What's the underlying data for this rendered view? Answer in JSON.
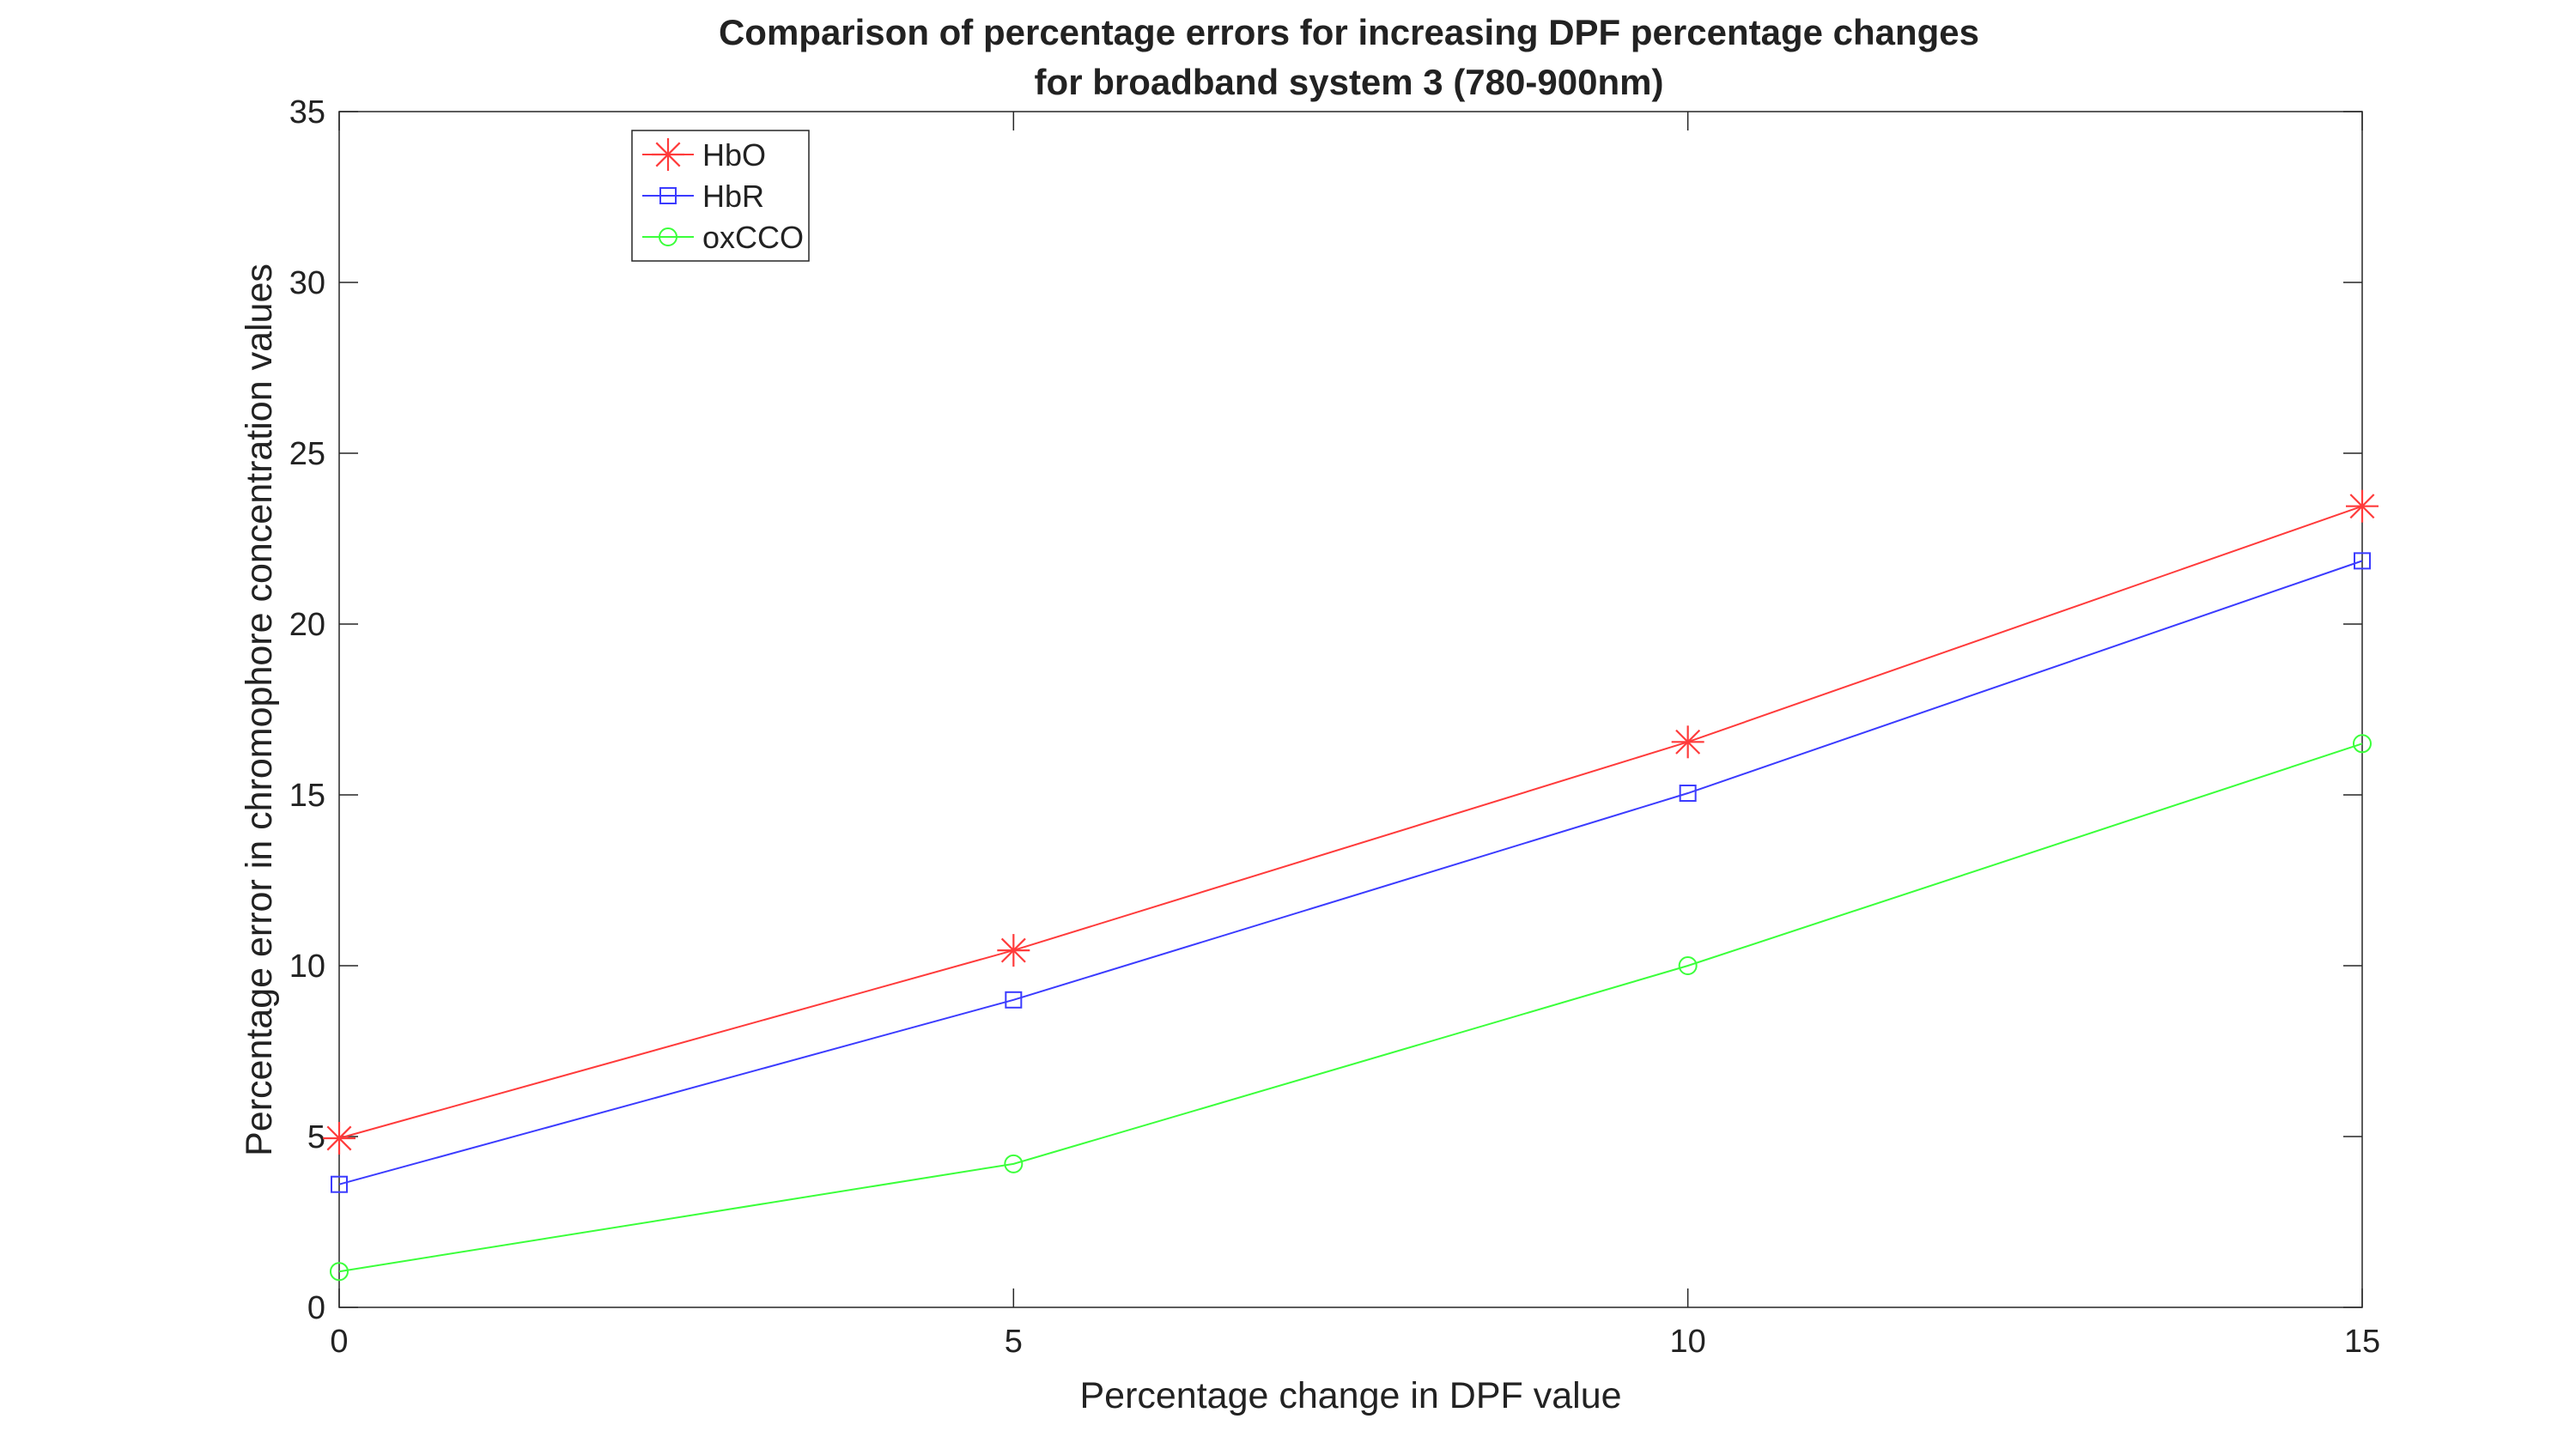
{
  "chart_data": {
    "type": "line",
    "title": "Comparison of percentage errors for increasing DPF percentage changes",
    "subtitle": "for broadband system 3 (780-900nm)",
    "xlabel": "Percentage change in DPF value",
    "ylabel": "Percentage error in chromophore concentration values",
    "x": [
      0,
      5,
      10,
      15
    ],
    "xlim": [
      0,
      15
    ],
    "ylim": [
      0,
      35
    ],
    "xticks": [
      "0",
      "5",
      "10",
      "15"
    ],
    "yticks": [
      "0",
      "5",
      "10",
      "15",
      "20",
      "25",
      "30",
      "35"
    ],
    "grid": false,
    "legend_position": "top-left",
    "series": [
      {
        "name": "HbO",
        "values": [
          4.95,
          10.45,
          16.55,
          23.45
        ],
        "color": "#ff3b3b",
        "marker": "asterisk"
      },
      {
        "name": "HbR",
        "values": [
          3.6,
          9.0,
          15.05,
          21.85
        ],
        "color": "#3b3bff",
        "marker": "square"
      },
      {
        "name": "oxCCO",
        "values": [
          1.05,
          4.2,
          10.0,
          16.5
        ],
        "color": "#3bff3b",
        "marker": "circle"
      }
    ]
  }
}
